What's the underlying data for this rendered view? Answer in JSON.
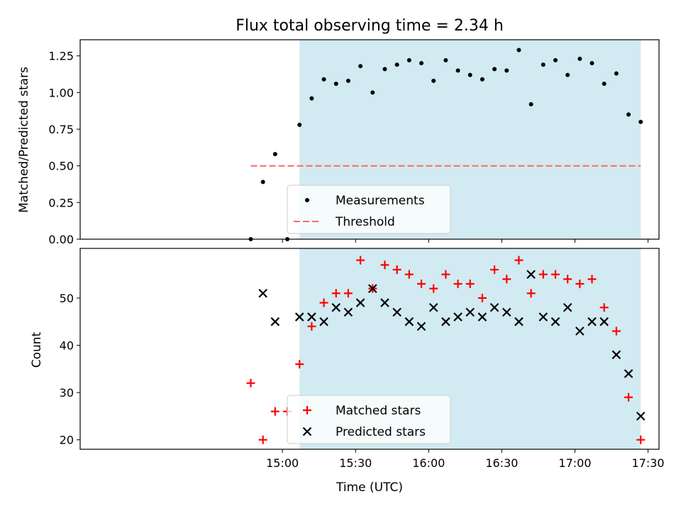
{
  "chart_data": {
    "title": "Flux total observing time = 2.34 h",
    "xlabel": "Time (UTC)",
    "x_tick_labels": [
      "15:00",
      "15:30",
      "16:00",
      "16:30",
      "17:00",
      "17:30"
    ],
    "x_tick_minutes": [
      900,
      930,
      960,
      990,
      1020,
      1050
    ],
    "xlim_minutes": [
      817,
      1054.5
    ],
    "observing_window_minutes": [
      907,
      1047
    ],
    "colors": {
      "window": "#add8e6",
      "measurements": "#000000",
      "threshold": "#ff6666",
      "matched": "#ff0000",
      "predicted": "#000000"
    },
    "panels": [
      {
        "type": "scatter",
        "ylabel": "Matched/Predicted stars",
        "ylim": [
          0,
          1.36
        ],
        "y_ticks": [
          0,
          0.25,
          0.5,
          0.75,
          1.0,
          1.25
        ],
        "y_tick_labels": [
          "0.00",
          "0.25",
          "0.50",
          "0.75",
          "1.00",
          "1.25"
        ],
        "legend_position": "bottom-center",
        "threshold": {
          "name": "Threshold",
          "y": 0.5,
          "x": [
            887,
            1047
          ]
        },
        "series": [
          {
            "name": "Measurements",
            "x": [
              887,
              892,
              897,
              902,
              907,
              912,
              917,
              922,
              927,
              932,
              937,
              942,
              947,
              952,
              957,
              962,
              967,
              972,
              977,
              982,
              987,
              992,
              997,
              1002,
              1007,
              1012,
              1017,
              1022,
              1027,
              1032,
              1037,
              1042,
              1047
            ],
            "y": [
              0.0,
              0.39,
              0.58,
              0.0,
              0.78,
              0.96,
              1.09,
              1.06,
              1.08,
              1.18,
              1.0,
              1.16,
              1.19,
              1.22,
              1.2,
              1.08,
              1.22,
              1.15,
              1.12,
              1.09,
              1.16,
              1.15,
              1.29,
              0.92,
              1.19,
              1.22,
              1.12,
              1.23,
              1.2,
              1.06,
              1.13,
              0.85,
              0.8
            ]
          }
        ]
      },
      {
        "type": "scatter",
        "ylabel": "Count",
        "ylim": [
          18,
          60.5
        ],
        "y_ticks": [
          20,
          30,
          40,
          50
        ],
        "y_tick_labels": [
          "20",
          "30",
          "40",
          "50"
        ],
        "legend_position": "bottom-center",
        "series": [
          {
            "name": "Matched stars",
            "marker": "+",
            "x": [
              887,
              892,
              897,
              902,
              907,
              912,
              917,
              922,
              927,
              932,
              937,
              942,
              947,
              952,
              957,
              962,
              967,
              972,
              977,
              982,
              987,
              992,
              997,
              1002,
              1007,
              1012,
              1017,
              1022,
              1027,
              1032,
              1037,
              1042,
              1047
            ],
            "y": [
              32,
              20,
              26,
              26,
              36,
              44,
              49,
              51,
              51,
              58,
              52,
              57,
              56,
              55,
              53,
              52,
              55,
              53,
              53,
              50,
              56,
              54,
              58,
              51,
              55,
              55,
              54,
              53,
              54,
              48,
              43,
              29,
              20
            ]
          },
          {
            "name": "Predicted stars",
            "marker": "x",
            "x": [
              892,
              897,
              907,
              912,
              917,
              922,
              927,
              932,
              937,
              942,
              947,
              952,
              957,
              962,
              967,
              972,
              977,
              982,
              987,
              992,
              997,
              1002,
              1007,
              1012,
              1017,
              1022,
              1027,
              1032,
              1037,
              1042,
              1047
            ],
            "y": [
              51,
              45,
              46,
              46,
              45,
              48,
              47,
              49,
              52,
              49,
              47,
              45,
              44,
              48,
              45,
              46,
              47,
              46,
              48,
              47,
              45,
              55,
              46,
              45,
              48,
              43,
              45,
              45,
              38,
              34,
              25
            ]
          }
        ]
      }
    ]
  }
}
